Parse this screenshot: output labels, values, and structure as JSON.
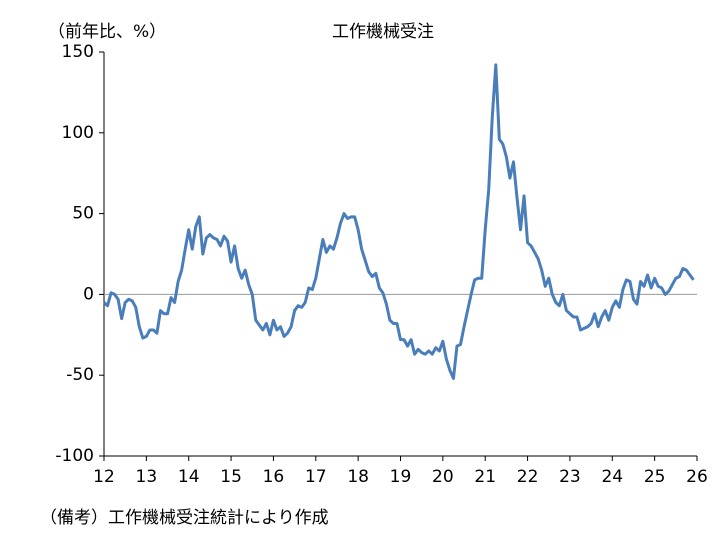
{
  "chart_data": {
    "type": "line",
    "title": "工作機械受注",
    "y_label": "（前年比、%）",
    "note": "（備考）工作機械受注統計により作成",
    "color": "#4a7ebb",
    "zero_line": true,
    "xlim": [
      12,
      26
    ],
    "xticks": [
      12,
      13,
      14,
      15,
      16,
      17,
      18,
      19,
      20,
      21,
      22,
      23,
      24,
      25,
      26
    ],
    "ylim": [
      -100,
      150
    ],
    "yticks": [
      -100,
      -50,
      0,
      50,
      100,
      150
    ],
    "x": [
      12,
      12.083,
      12.167,
      12.25,
      12.333,
      12.417,
      12.5,
      12.583,
      12.667,
      12.75,
      12.833,
      12.917,
      13,
      13.083,
      13.167,
      13.25,
      13.333,
      13.417,
      13.5,
      13.583,
      13.667,
      13.75,
      13.833,
      13.917,
      14,
      14.083,
      14.167,
      14.25,
      14.333,
      14.417,
      14.5,
      14.583,
      14.667,
      14.75,
      14.833,
      14.917,
      15,
      15.083,
      15.167,
      15.25,
      15.333,
      15.417,
      15.5,
      15.583,
      15.667,
      15.75,
      15.833,
      15.917,
      16,
      16.083,
      16.167,
      16.25,
      16.333,
      16.417,
      16.5,
      16.583,
      16.667,
      16.75,
      16.833,
      16.917,
      17,
      17.083,
      17.167,
      17.25,
      17.333,
      17.417,
      17.5,
      17.583,
      17.667,
      17.75,
      17.833,
      17.917,
      18,
      18.083,
      18.167,
      18.25,
      18.333,
      18.417,
      18.5,
      18.583,
      18.667,
      18.75,
      18.833,
      18.917,
      19,
      19.083,
      19.167,
      19.25,
      19.333,
      19.417,
      19.5,
      19.583,
      19.667,
      19.75,
      19.833,
      19.917,
      20,
      20.083,
      20.167,
      20.25,
      20.333,
      20.417,
      20.5,
      20.583,
      20.667,
      20.75,
      20.833,
      20.917,
      21,
      21.083,
      21.167,
      21.25,
      21.333,
      21.417,
      21.5,
      21.583,
      21.667,
      21.75,
      21.833,
      21.917,
      22,
      22.083,
      22.167,
      22.25,
      22.333,
      22.417,
      22.5,
      22.583,
      22.667,
      22.75,
      22.833,
      22.917,
      23,
      23.083,
      23.167,
      23.25,
      23.333,
      23.417,
      23.5,
      23.583,
      23.667,
      23.75,
      23.833,
      23.917,
      24,
      24.083,
      24.167,
      24.25,
      24.333,
      24.417,
      24.5,
      24.583,
      24.667,
      24.75,
      24.833,
      24.917,
      25,
      25.083,
      25.167,
      25.25,
      25.333,
      25.417,
      25.5,
      25.583,
      25.667,
      25.75,
      25.833,
      25.917
    ],
    "values": [
      -5,
      -7,
      1,
      0,
      -3,
      -15,
      -5,
      -3,
      -4,
      -8,
      -20,
      -27,
      -26,
      -22,
      -22,
      -24,
      -10,
      -12,
      -12,
      -2,
      -5,
      8,
      15,
      28,
      40,
      28,
      42,
      48,
      25,
      35,
      37,
      35,
      34,
      30,
      36,
      33,
      20,
      30,
      16,
      10,
      15,
      6,
      0,
      -16,
      -19,
      -22,
      -18,
      -25,
      -16,
      -22,
      -20,
      -26,
      -24,
      -20,
      -10,
      -7,
      -8,
      -5,
      4,
      3,
      10,
      22,
      34,
      26,
      30,
      28,
      35,
      44,
      50,
      47,
      48,
      48,
      40,
      28,
      21,
      14,
      11,
      13,
      4,
      1,
      -6,
      -16,
      -18,
      -18,
      -28,
      -28,
      -32,
      -28,
      -37,
      -34,
      -36,
      -37,
      -35,
      -37,
      -33,
      -35,
      -29,
      -40,
      -47,
      -52,
      -32,
      -31,
      -20,
      -10,
      0,
      9,
      10,
      10,
      40,
      65,
      110,
      142,
      96,
      93,
      85,
      72,
      82,
      60,
      40,
      61,
      32,
      30,
      26,
      22,
      15,
      5,
      10,
      0,
      -5,
      -7,
      0,
      -10,
      -12,
      -14,
      -14,
      -22,
      -21,
      -20,
      -18,
      -12,
      -20,
      -14,
      -10,
      -16,
      -8,
      -4,
      -8,
      3,
      9,
      8,
      -3,
      -6,
      8,
      5,
      12,
      4,
      10,
      5,
      4,
      0,
      2,
      6,
      10,
      11,
      16,
      15,
      12,
      9
    ]
  }
}
